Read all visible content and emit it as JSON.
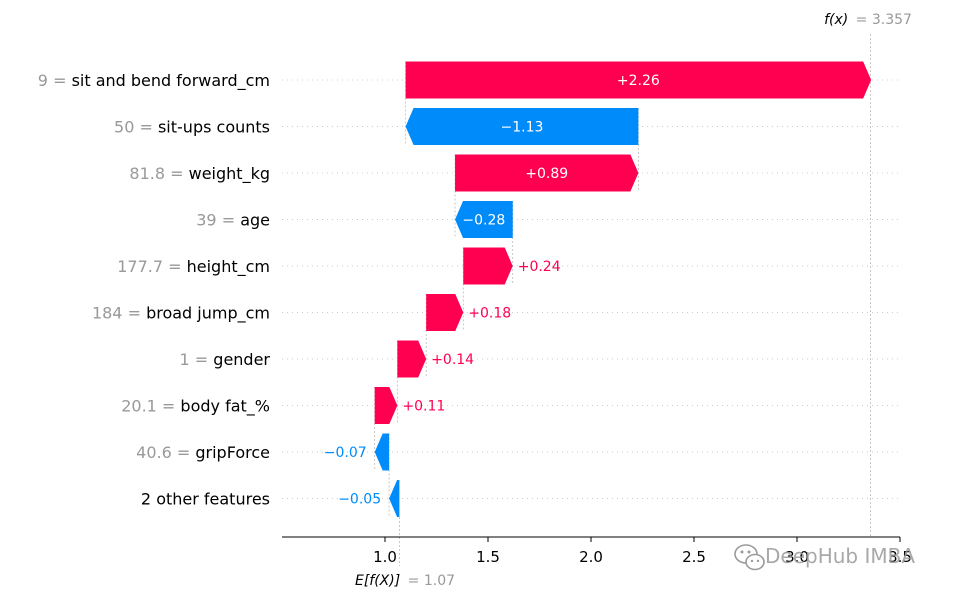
{
  "chart_data": {
    "type": "waterfall",
    "base_value": 1.07,
    "final_value": 3.357,
    "fx_label": "f(x)",
    "fx_value_text": "3.357",
    "ex_label": "E[f(X)]",
    "ex_value_text": "1.07",
    "xlim": [
      0.5,
      3.5
    ],
    "xticks": [
      1.0,
      1.5,
      2.0,
      2.5,
      3.0,
      3.5
    ],
    "xtick_labels": [
      "1.0",
      "1.5",
      "2.0",
      "2.5",
      "3.0",
      "3.5"
    ],
    "features": [
      {
        "value": "9",
        "name": "sit and bend forward_cm",
        "contribution": 2.26,
        "label": "+2.26"
      },
      {
        "value": "50",
        "name": "sit-ups counts",
        "contribution": -1.13,
        "label": "−1.13"
      },
      {
        "value": "81.8",
        "name": "weight_kg",
        "contribution": 0.89,
        "label": "+0.89"
      },
      {
        "value": "39",
        "name": "age",
        "contribution": -0.28,
        "label": "−0.28"
      },
      {
        "value": "177.7",
        "name": "height_cm",
        "contribution": 0.24,
        "label": "+0.24"
      },
      {
        "value": "184",
        "name": "broad jump_cm",
        "contribution": 0.18,
        "label": "+0.18"
      },
      {
        "value": "1",
        "name": "gender",
        "contribution": 0.14,
        "label": "+0.14"
      },
      {
        "value": "20.1",
        "name": "body fat_%",
        "contribution": 0.11,
        "label": "+0.11"
      },
      {
        "value": "40.6",
        "name": "gripForce",
        "contribution": -0.07,
        "label": "−0.07"
      },
      {
        "value": "",
        "name": "2 other features",
        "contribution": -0.05,
        "label": "−0.05"
      }
    ],
    "colors": {
      "positive": "#ff0051",
      "negative": "#008bfb",
      "value_text": "#999999"
    }
  },
  "watermark": {
    "text": "DeepHub IMBA",
    "icon": "wechat-icon"
  }
}
